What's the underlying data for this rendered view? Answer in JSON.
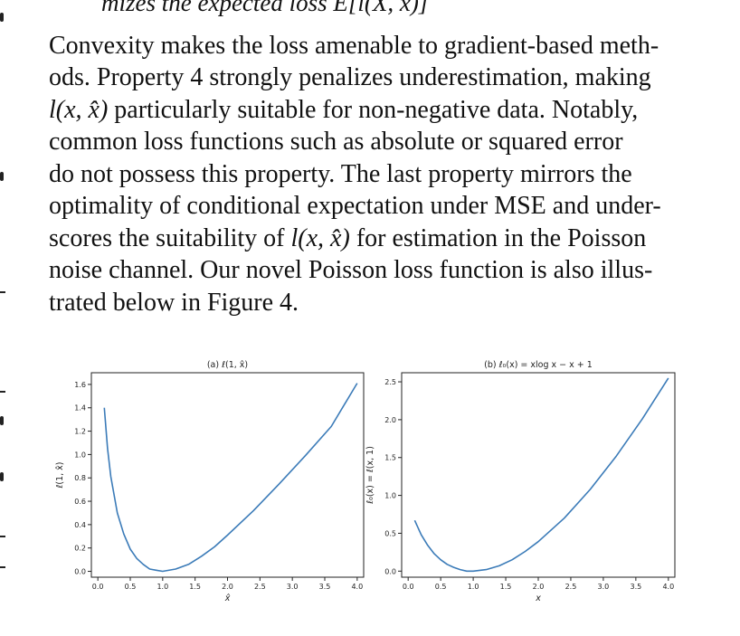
{
  "top_line": "mizes the expected loss E[l(X, x)]",
  "paragraph": {
    "lines": [
      "Convexity makes the loss amenable to gradient-based meth-",
      "ods. Property 4 strongly penalizes underestimation, making",
      "particularly suitable for non-negative data. Notably,",
      "common loss functions such as absolute or squared error",
      "do not possess this property. The last property mirrors the",
      "optimality of conditional expectation under MSE and under-",
      "scores the suitability of",
      "for estimation in the Poisson",
      "noise channel. Our novel Poisson loss function is also illus-",
      "trated below in Figure 4."
    ],
    "math_term": "l(x, x̂)"
  },
  "chart_data": [
    {
      "type": "line",
      "title": "(a) ℓ(1, x̂)",
      "xlabel": "x̂",
      "ylabel": "ℓ(1, x̂)",
      "xlim": [
        -0.1,
        4.1
      ],
      "ylim": [
        -0.05,
        1.7
      ],
      "xticks": [
        "0.0",
        "0.5",
        "1.0",
        "1.5",
        "2.0",
        "2.5",
        "3.0",
        "3.5",
        "4.0"
      ],
      "yticks": [
        "0.0",
        "0.2",
        "0.4",
        "0.6",
        "0.8",
        "1.0",
        "1.2",
        "1.4",
        "1.6"
      ],
      "series": [
        {
          "color": "#3b7bb8",
          "x": [
            0.1,
            0.15,
            0.2,
            0.3,
            0.4,
            0.5,
            0.6,
            0.7,
            0.8,
            0.9,
            1.0,
            1.2,
            1.4,
            1.6,
            1.8,
            2.0,
            2.4,
            2.8,
            3.2,
            3.6,
            4.0
          ],
          "y": [
            1.4,
            1.05,
            0.81,
            0.5,
            0.32,
            0.19,
            0.11,
            0.06,
            0.02,
            0.01,
            0.0,
            0.02,
            0.06,
            0.13,
            0.21,
            0.31,
            0.52,
            0.75,
            0.99,
            1.24,
            1.61
          ]
        }
      ]
    },
    {
      "type": "line",
      "title": "(b) ℓ₀(x) = xlog x − x + 1",
      "xlabel": "x",
      "ylabel": "ℓ₀(x) = ℓ(x, 1)",
      "xlim": [
        -0.1,
        4.1
      ],
      "ylim": [
        -0.08,
        2.62
      ],
      "xticks": [
        "0.0",
        "0.5",
        "1.0",
        "1.5",
        "2.0",
        "2.5",
        "3.0",
        "3.5",
        "4.0"
      ],
      "yticks": [
        "0.0",
        "0.5",
        "1.0",
        "1.5",
        "2.0",
        "2.5"
      ],
      "series": [
        {
          "color": "#3b7bb8",
          "x": [
            0.1,
            0.2,
            0.3,
            0.4,
            0.5,
            0.6,
            0.7,
            0.8,
            0.9,
            1.0,
            1.2,
            1.4,
            1.6,
            1.8,
            2.0,
            2.4,
            2.8,
            3.2,
            3.6,
            4.0
          ],
          "y": [
            0.67,
            0.48,
            0.34,
            0.23,
            0.15,
            0.09,
            0.05,
            0.02,
            0.0,
            0.0,
            0.02,
            0.07,
            0.15,
            0.26,
            0.39,
            0.7,
            1.08,
            1.52,
            2.01,
            2.55
          ]
        }
      ]
    }
  ]
}
